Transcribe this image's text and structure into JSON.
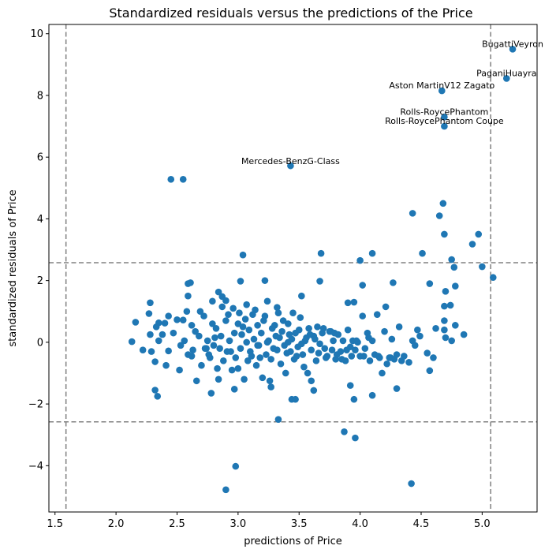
{
  "chart_data": {
    "type": "scatter",
    "title": "Standardized residuals versus the predictions of the Price",
    "xlabel": "predictions of Price",
    "ylabel": "standardized residuals of Price",
    "xlim": [
      1.45,
      5.45
    ],
    "ylim": [
      -5.5,
      10.3
    ],
    "xticks": [
      1.5,
      2.0,
      2.5,
      3.0,
      3.5,
      4.0,
      4.5,
      5.0
    ],
    "yticks": [
      -4,
      -2,
      0,
      2,
      4,
      6,
      8,
      10
    ],
    "xtick_labels": [
      "1.5",
      "2.0",
      "2.5",
      "3.0",
      "3.5",
      "4.0",
      "4.5",
      "5.0"
    ],
    "ytick_labels": [
      "−4",
      "−2",
      "0",
      "2",
      "4",
      "6",
      "8",
      "10"
    ],
    "grid": false,
    "marker_color": "#1f77b4",
    "reference_line_color": "#808080",
    "hlines": [
      2.58,
      -2.58
    ],
    "vlines": [
      1.59,
      5.07
    ],
    "annotations": [
      {
        "text": "BugattiVeyron",
        "x": 5.25,
        "y": 9.5
      },
      {
        "text": "PaganiHuayra",
        "x": 5.2,
        "y": 8.55
      },
      {
        "text": "Aston MartinV12 Zagato",
        "x": 4.67,
        "y": 8.15
      },
      {
        "text": "Rolls-RoycePhantom",
        "x": 4.69,
        "y": 7.3
      },
      {
        "text": "Rolls-RoycePhantom Coupe",
        "x": 4.69,
        "y": 7.0
      },
      {
        "text": "Mercedes-BenzG-Class",
        "x": 3.43,
        "y": 5.7
      }
    ],
    "points": [
      [
        5.25,
        9.5
      ],
      [
        5.2,
        8.55
      ],
      [
        4.67,
        8.15
      ],
      [
        4.69,
        7.3
      ],
      [
        4.69,
        7.0
      ],
      [
        3.43,
        5.72
      ],
      [
        2.45,
        5.28
      ],
      [
        2.55,
        5.28
      ],
      [
        4.68,
        4.5
      ],
      [
        4.43,
        4.18
      ],
      [
        4.65,
        4.1
      ],
      [
        4.69,
        3.5
      ],
      [
        4.97,
        3.5
      ],
      [
        4.92,
        3.18
      ],
      [
        3.04,
        2.83
      ],
      [
        3.68,
        2.88
      ],
      [
        4.1,
        2.88
      ],
      [
        4.51,
        2.88
      ],
      [
        4.75,
        2.68
      ],
      [
        4.0,
        2.65
      ],
      [
        4.77,
        2.43
      ],
      [
        5.0,
        2.45
      ],
      [
        5.09,
        2.1
      ],
      [
        3.02,
        1.98
      ],
      [
        3.67,
        1.98
      ],
      [
        3.22,
        2.0
      ],
      [
        4.27,
        1.93
      ],
      [
        4.57,
        1.9
      ],
      [
        4.02,
        1.85
      ],
      [
        4.78,
        1.82
      ],
      [
        2.59,
        1.9
      ],
      [
        2.61,
        1.93
      ],
      [
        3.52,
        1.5
      ],
      [
        4.7,
        1.65
      ],
      [
        2.59,
        1.5
      ],
      [
        2.84,
        1.63
      ],
      [
        2.87,
        1.48
      ],
      [
        2.9,
        1.35
      ],
      [
        2.79,
        1.33
      ],
      [
        2.28,
        1.28
      ],
      [
        4.21,
        1.15
      ],
      [
        4.69,
        1.17
      ],
      [
        4.74,
        1.2
      ],
      [
        3.07,
        1.22
      ],
      [
        3.24,
        1.33
      ],
      [
        3.32,
        1.13
      ],
      [
        3.9,
        1.28
      ],
      [
        3.95,
        1.3
      ],
      [
        2.27,
        0.93
      ],
      [
        2.43,
        0.85
      ],
      [
        2.55,
        0.72
      ],
      [
        2.13,
        0.02
      ],
      [
        2.16,
        0.65
      ],
      [
        2.22,
        -0.25
      ],
      [
        2.28,
        0.25
      ],
      [
        2.29,
        -0.3
      ],
      [
        2.32,
        -0.63
      ],
      [
        2.33,
        0.5
      ],
      [
        2.35,
        0.63
      ],
      [
        2.35,
        0.05
      ],
      [
        2.38,
        0.25
      ],
      [
        2.41,
        -0.75
      ],
      [
        2.43,
        -0.28
      ],
      [
        2.5,
        0.73
      ],
      [
        2.52,
        -0.9
      ],
      [
        2.53,
        -0.1
      ],
      [
        2.56,
        0.05
      ],
      [
        2.59,
        -0.4
      ],
      [
        2.62,
        0.55
      ],
      [
        2.63,
        -0.25
      ],
      [
        2.65,
        0.35
      ],
      [
        2.66,
        -1.25
      ],
      [
        2.68,
        0.2
      ],
      [
        2.7,
        -0.75
      ],
      [
        2.72,
        0.85
      ],
      [
        2.74,
        -0.2
      ],
      [
        2.75,
        0.05
      ],
      [
        2.77,
        -0.5
      ],
      [
        2.79,
        0.6
      ],
      [
        2.8,
        -0.1
      ],
      [
        2.82,
        0.45
      ],
      [
        2.83,
        -0.85
      ],
      [
        2.85,
        -0.2
      ],
      [
        2.86,
        0.2
      ],
      [
        2.88,
        -0.6
      ],
      [
        2.9,
        0.7
      ],
      [
        2.91,
        -0.3
      ],
      [
        2.93,
        0.05
      ],
      [
        2.95,
        -0.9
      ],
      [
        2.96,
        1.1
      ],
      [
        2.97,
        0.3
      ],
      [
        2.98,
        -0.5
      ],
      [
        3.0,
        0.6
      ],
      [
        3.01,
        0.95
      ],
      [
        3.02,
        -0.2
      ],
      [
        3.03,
        0.25
      ],
      [
        3.05,
        -1.2
      ],
      [
        3.06,
        0.75
      ],
      [
        3.08,
        -0.6
      ],
      [
        3.09,
        0.4
      ],
      [
        3.1,
        -0.3
      ],
      [
        3.12,
        0.9
      ],
      [
        3.13,
        0.1
      ],
      [
        3.15,
        -0.75
      ],
      [
        3.16,
        0.55
      ],
      [
        3.17,
        -0.1
      ],
      [
        3.19,
        0.3
      ],
      [
        3.2,
        -1.15
      ],
      [
        3.21,
        0.7
      ],
      [
        3.23,
        -0.4
      ],
      [
        3.25,
        0.05
      ],
      [
        3.26,
        -1.25
      ],
      [
        3.28,
        0.45
      ],
      [
        3.29,
        -0.2
      ],
      [
        3.31,
        0.2
      ],
      [
        3.33,
        0.95
      ],
      [
        3.35,
        -0.7
      ],
      [
        3.36,
        0.35
      ],
      [
        3.38,
        -0.1
      ],
      [
        3.39,
        -1.0
      ],
      [
        3.41,
        0.6
      ],
      [
        3.43,
        -0.3
      ],
      [
        3.44,
        0.1
      ],
      [
        3.46,
        -0.55
      ],
      [
        3.47,
        0.3
      ],
      [
        3.49,
        -0.15
      ],
      [
        3.51,
        0.8
      ],
      [
        3.53,
        -0.4
      ],
      [
        3.55,
        0.05
      ],
      [
        3.57,
        -1.0
      ],
      [
        3.58,
        0.45
      ],
      [
        3.6,
        -0.25
      ],
      [
        3.62,
        0.2
      ],
      [
        3.64,
        -0.6
      ],
      [
        3.65,
        0.5
      ],
      [
        3.67,
        -0.05
      ],
      [
        3.69,
        0.3
      ],
      [
        3.71,
        -0.2
      ],
      [
        3.73,
        -0.45
      ],
      [
        3.75,
        0.35
      ],
      [
        3.77,
        -0.25
      ],
      [
        3.78,
        0.05
      ],
      [
        3.8,
        -0.55
      ],
      [
        3.82,
        0.25
      ],
      [
        3.84,
        -0.3
      ],
      [
        3.86,
        0.05
      ],
      [
        3.88,
        -0.6
      ],
      [
        3.9,
        0.4
      ],
      [
        3.92,
        -0.15
      ],
      [
        3.94,
        0.05
      ],
      [
        3.96,
        -0.25
      ],
      [
        3.98,
        0.0
      ],
      [
        4.0,
        -0.45
      ],
      [
        4.02,
        0.85
      ],
      [
        4.04,
        -0.2
      ],
      [
        4.06,
        0.3
      ],
      [
        4.08,
        -0.6
      ],
      [
        4.1,
        0.05
      ],
      [
        4.12,
        -0.4
      ],
      [
        4.14,
        0.9
      ],
      [
        4.16,
        -0.5
      ],
      [
        4.18,
        -1.0
      ],
      [
        4.2,
        0.35
      ],
      [
        4.22,
        -0.7
      ],
      [
        4.24,
        -0.5
      ],
      [
        4.26,
        0.1
      ],
      [
        4.28,
        -0.55
      ],
      [
        4.3,
        -0.4
      ],
      [
        4.32,
        0.5
      ],
      [
        4.34,
        -0.6
      ],
      [
        4.36,
        -0.45
      ],
      [
        4.4,
        -0.65
      ],
      [
        4.43,
        0.05
      ],
      [
        4.45,
        -0.1
      ],
      [
        4.47,
        0.4
      ],
      [
        4.49,
        0.2
      ],
      [
        4.55,
        -0.35
      ],
      [
        4.6,
        -0.5
      ],
      [
        4.62,
        0.45
      ],
      [
        4.69,
        0.7
      ],
      [
        4.69,
        0.4
      ],
      [
        4.7,
        0.15
      ],
      [
        4.75,
        0.05
      ],
      [
        4.78,
        0.55
      ],
      [
        4.85,
        0.25
      ],
      [
        4.57,
        -0.92
      ],
      [
        4.3,
        -1.5
      ],
      [
        4.1,
        -1.72
      ],
      [
        3.92,
        -1.4
      ],
      [
        3.95,
        -1.85
      ],
      [
        3.62,
        -1.56
      ],
      [
        3.6,
        -1.25
      ],
      [
        3.44,
        -1.85
      ],
      [
        3.47,
        -1.85
      ],
      [
        3.27,
        -1.45
      ],
      [
        2.78,
        -1.65
      ],
      [
        2.84,
        -1.2
      ],
      [
        2.32,
        -1.55
      ],
      [
        2.34,
        -1.75
      ],
      [
        2.97,
        -1.52
      ],
      [
        3.33,
        -2.5
      ],
      [
        3.87,
        -2.9
      ],
      [
        3.96,
        -3.1
      ],
      [
        2.98,
        -4.02
      ],
      [
        2.9,
        -4.78
      ],
      [
        4.42,
        -4.58
      ],
      [
        2.4,
        0.62
      ],
      [
        2.47,
        0.3
      ],
      [
        2.58,
        1.0
      ],
      [
        2.69,
        1.0
      ],
      [
        2.76,
        -0.4
      ],
      [
        2.87,
        1.15
      ],
      [
        2.92,
        0.9
      ],
      [
        3.0,
        -0.85
      ],
      [
        3.04,
        0.5
      ],
      [
        3.11,
        -0.45
      ],
      [
        3.14,
        1.05
      ],
      [
        3.18,
        -0.5
      ],
      [
        3.22,
        0.85
      ],
      [
        3.27,
        -0.55
      ],
      [
        3.3,
        0.55
      ],
      [
        3.34,
        0.15
      ],
      [
        3.37,
        0.7
      ],
      [
        3.4,
        -0.35
      ],
      [
        3.42,
        0.25
      ],
      [
        3.45,
        0.95
      ],
      [
        3.48,
        -0.45
      ],
      [
        3.5,
        0.4
      ],
      [
        3.54,
        -0.8
      ],
      [
        3.56,
        0.15
      ],
      [
        3.59,
        0.25
      ],
      [
        3.63,
        0.1
      ],
      [
        3.66,
        -0.35
      ],
      [
        3.7,
        0.45
      ],
      [
        3.72,
        -0.5
      ],
      [
        3.76,
        0.35
      ],
      [
        3.79,
        0.3
      ],
      [
        3.81,
        -0.4
      ],
      [
        3.85,
        -0.55
      ],
      [
        3.89,
        -0.25
      ],
      [
        3.93,
        -0.45
      ],
      [
        3.97,
        0.05
      ],
      [
        4.03,
        -0.45
      ],
      [
        4.07,
        0.15
      ],
      [
        4.15,
        -0.45
      ],
      [
        4.25,
        -0.5
      ],
      [
        2.62,
        -0.45
      ],
      [
        2.73,
        -0.2
      ],
      [
        2.81,
        0.15
      ],
      [
        2.94,
        -0.3
      ],
      [
        3.07,
        0.0
      ],
      [
        3.16,
        -0.1
      ],
      [
        3.24,
        0.0
      ],
      [
        3.32,
        -0.25
      ],
      [
        3.41,
        0.0
      ],
      [
        3.52,
        -0.05
      ]
    ]
  }
}
